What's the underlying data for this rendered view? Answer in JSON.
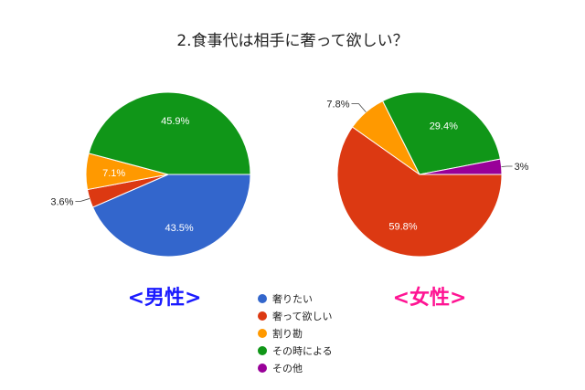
{
  "title": "2.食事代は相手に奢って欲しい？",
  "legend": [
    {
      "label": "奢りたい",
      "color": "#3366CC"
    },
    {
      "label": "奢って欲しい",
      "color": "#DC3912"
    },
    {
      "label": "割り勘",
      "color": "#FF9900"
    },
    {
      "label": "その時による",
      "color": "#109618"
    },
    {
      "label": "その他",
      "color": "#990099"
    }
  ],
  "chart_data": [
    {
      "type": "pie",
      "name": "<男性>",
      "label_color": "#1a1aff",
      "categories": [
        "奢りたい",
        "奢って欲しい",
        "割り勘",
        "その時による",
        "その他"
      ],
      "values": [
        43.5,
        3.6,
        7.1,
        45.9,
        0
      ],
      "data_labels": [
        "43.5%",
        "3.6%",
        "7.1%",
        "45.9%",
        ""
      ]
    },
    {
      "type": "pie",
      "name": "<女性>",
      "label_color": "#ff1493",
      "categories": [
        "奢りたい",
        "奢って欲しい",
        "割り勘",
        "その時による",
        "その他"
      ],
      "values": [
        0,
        59.8,
        7.8,
        29.4,
        3
      ],
      "data_labels": [
        "",
        "59.8%",
        "7.8%",
        "29.4%",
        "3%"
      ]
    }
  ]
}
